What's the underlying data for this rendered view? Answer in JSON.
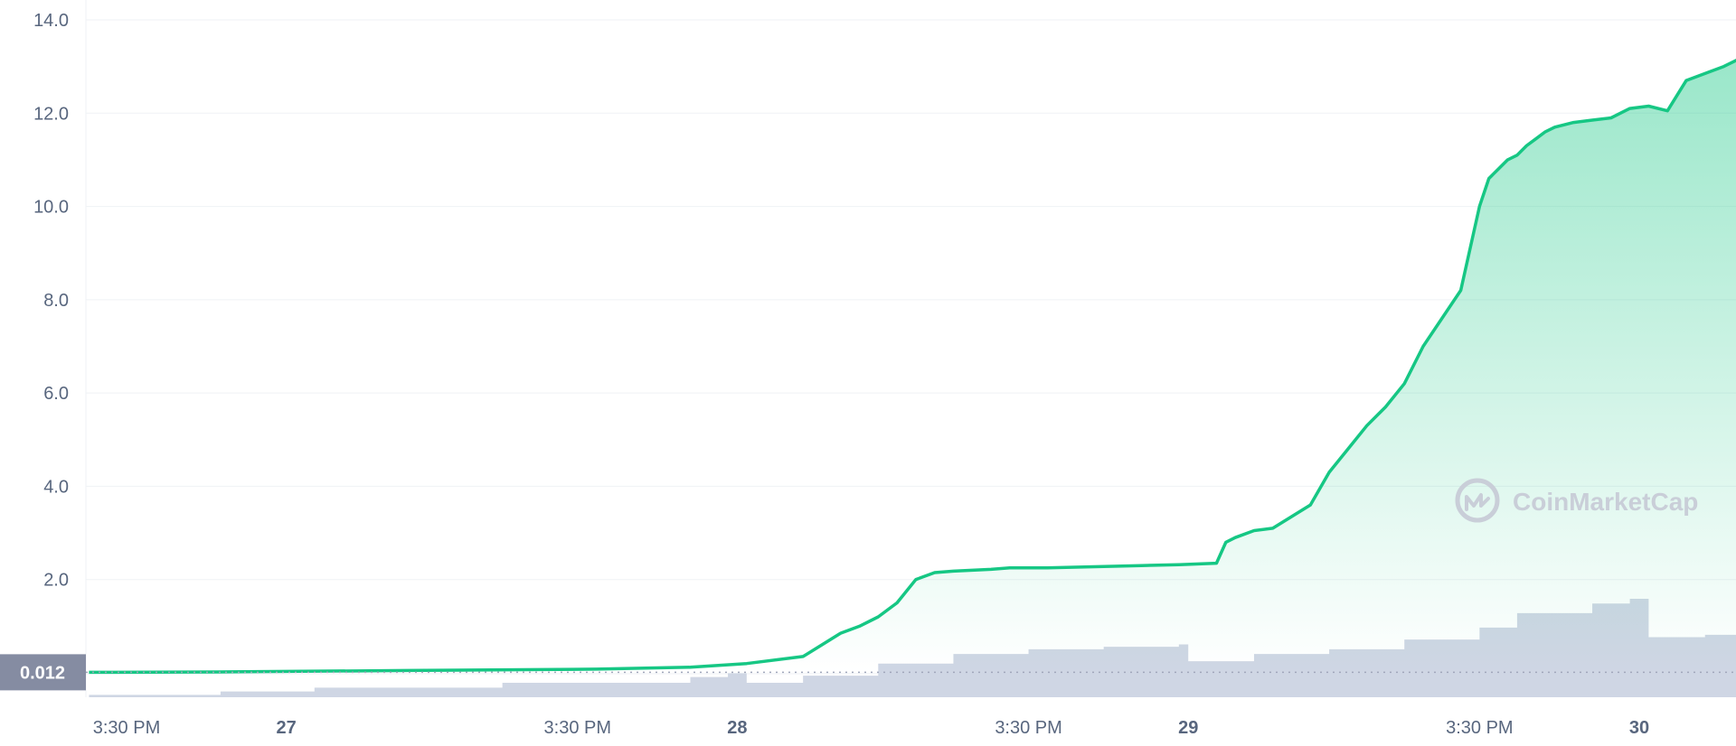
{
  "chart_data": {
    "type": "area",
    "title": "",
    "xlabel": "",
    "ylabel": "",
    "ylim": [
      0,
      14.0
    ],
    "y_ticks": [
      "2.0",
      "4.0",
      "6.0",
      "8.0",
      "10.0",
      "12.0",
      "14.0"
    ],
    "x_ticks": [
      {
        "label": "3:30 PM",
        "t": 0,
        "day": false
      },
      {
        "label": "27",
        "t": 8.5,
        "day": true
      },
      {
        "label": "3:30 PM",
        "t": 24,
        "day": false
      },
      {
        "label": "28",
        "t": 32.5,
        "day": true
      },
      {
        "label": "3:30 PM",
        "t": 48,
        "day": false
      },
      {
        "label": "29",
        "t": 56.5,
        "day": true
      },
      {
        "label": "3:30 PM",
        "t": 72,
        "day": false
      },
      {
        "label": "30",
        "t": 80.5,
        "day": true
      }
    ],
    "current_value_label": "0.012",
    "current_value": 0.012,
    "price_color": "#16c784",
    "volume_color": "#cfd6e4",
    "price_series": {
      "name": "",
      "t": [
        -2,
        5,
        15,
        25,
        30,
        33,
        36,
        37,
        38,
        39,
        40,
        41,
        42,
        43,
        44,
        45,
        46,
        47,
        48,
        49,
        50,
        52,
        54,
        56,
        58,
        58.5,
        59,
        60,
        61,
        62,
        63,
        64,
        65,
        66,
        67,
        68,
        69,
        70,
        71,
        72,
        72.5,
        73,
        73.5,
        74,
        74.5,
        75,
        75.5,
        76,
        77,
        78,
        79,
        80,
        81,
        82,
        83,
        84,
        85,
        86,
        87,
        88,
        88.5
      ],
      "values": [
        0.012,
        0.02,
        0.05,
        0.08,
        0.12,
        0.2,
        0.35,
        0.6,
        0.85,
        1.0,
        1.2,
        1.5,
        2.0,
        2.15,
        2.18,
        2.2,
        2.22,
        2.25,
        2.25,
        2.25,
        2.26,
        2.28,
        2.3,
        2.32,
        2.35,
        2.8,
        2.9,
        3.05,
        3.1,
        3.35,
        3.6,
        4.3,
        4.8,
        5.3,
        5.7,
        6.2,
        7.0,
        7.6,
        8.2,
        10.0,
        10.6,
        10.8,
        11.0,
        11.1,
        11.3,
        11.45,
        11.6,
        11.7,
        11.8,
        11.85,
        11.9,
        12.1,
        12.15,
        12.05,
        12.7,
        12.85,
        13.0,
        13.2,
        13.45,
        13.55,
        13.65
      ]
    },
    "volume_series": {
      "name": "",
      "t": [
        -2,
        5,
        10,
        20,
        30,
        32,
        33,
        36,
        40,
        44,
        48,
        52,
        56,
        56.5,
        60,
        64,
        68,
        72,
        74,
        78,
        80,
        81,
        84,
        88.5
      ],
      "values": [
        0.05,
        0.12,
        0.2,
        0.3,
        0.42,
        0.5,
        0.3,
        0.45,
        0.7,
        0.9,
        1.0,
        1.05,
        1.1,
        0.75,
        0.9,
        1.0,
        1.2,
        1.45,
        1.75,
        1.95,
        2.05,
        1.25,
        1.3,
        1.45
      ]
    },
    "volume_ylim": [
      0,
      2.2
    ],
    "grid": true,
    "legend": "none"
  },
  "watermark": {
    "text": "CoinMarketCap",
    "icon": "coinmarketcap-logo-icon"
  }
}
